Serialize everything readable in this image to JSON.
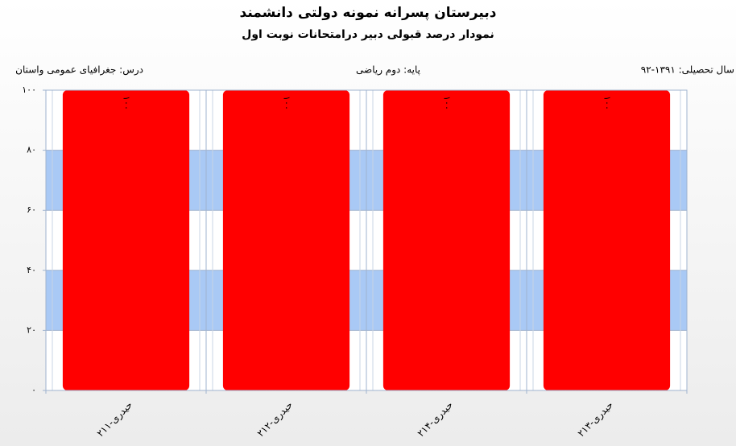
{
  "chart_data": {
    "type": "bar",
    "title": "دبیرستان پسرانه نمونه دولتی دانشمند",
    "subtitle": "نمودار درصد قبولی دبیر درامتحانات نوبت اول",
    "info": [
      "سال تحصیلی: ۱۳۹۱-۹۲",
      "پایه: دوم ریاضی",
      "درس: جغرافیای  عمومی  واستان"
    ],
    "categories": [
      "حیدری-۲۱۱",
      "حیدری-۲۱۲",
      "حیدری-۲۱۴",
      "حیدری-۲۱۳"
    ],
    "values": [
      100,
      100,
      100,
      100
    ],
    "value_labels": [
      "۱۰۰",
      "۱۰۰",
      "۱۰۰",
      "۱۰۰"
    ],
    "color": "#ff0000",
    "ylim": [
      0,
      100
    ],
    "yticks": [
      {
        "value": 0,
        "label": "۰"
      },
      {
        "value": 20,
        "label": "۲۰"
      },
      {
        "value": 40,
        "label": "۴۰"
      },
      {
        "value": 60,
        "label": "۶۰"
      },
      {
        "value": 80,
        "label": "۸۰"
      },
      {
        "value": 100,
        "label": "۱۰۰"
      }
    ],
    "grid": true,
    "band_color": "#a9c9f5"
  }
}
